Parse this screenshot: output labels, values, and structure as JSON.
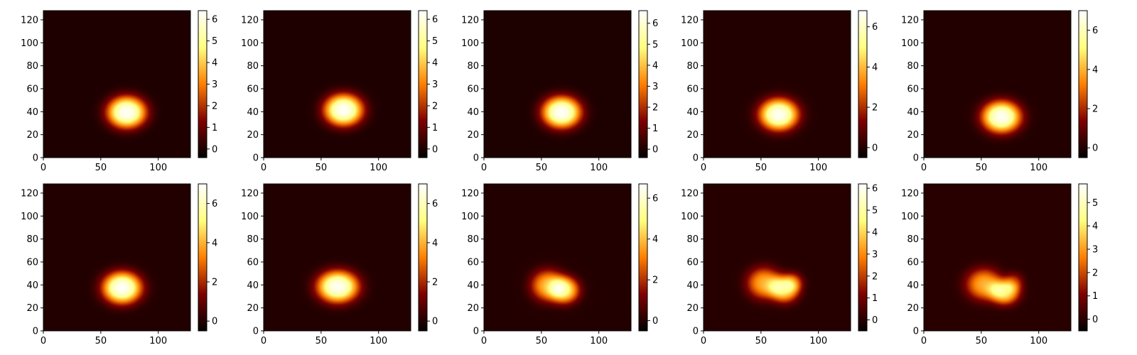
{
  "chart_data": [
    {
      "type": "heatmap",
      "cmap": "afmhot",
      "xlim": [
        0,
        128
      ],
      "ylim": [
        0,
        128
      ],
      "xticks": [
        0,
        50,
        100
      ],
      "yticks": [
        0,
        20,
        40,
        60,
        80,
        100,
        120
      ],
      "blobs": [
        {
          "x": 72,
          "y": 39,
          "sx": 16,
          "sy": 13,
          "amp": 6.3
        }
      ],
      "clim": [
        -0.4,
        6.4
      ],
      "cticks": [
        0,
        1,
        2,
        3,
        4,
        5,
        6
      ]
    },
    {
      "type": "heatmap",
      "cmap": "afmhot",
      "xlim": [
        0,
        128
      ],
      "ylim": [
        0,
        128
      ],
      "xticks": [
        0,
        50,
        100
      ],
      "yticks": [
        0,
        20,
        40,
        60,
        80,
        100,
        120
      ],
      "blobs": [
        {
          "x": 69,
          "y": 41,
          "sx": 16,
          "sy": 13,
          "amp": 6.3
        }
      ],
      "clim": [
        -0.4,
        6.4
      ],
      "cticks": [
        0,
        1,
        2,
        3,
        4,
        5,
        6
      ]
    },
    {
      "type": "heatmap",
      "cmap": "afmhot",
      "xlim": [
        0,
        128
      ],
      "ylim": [
        0,
        128
      ],
      "xticks": [
        0,
        50,
        100
      ],
      "yticks": [
        0,
        20,
        40,
        60,
        80,
        100,
        120
      ],
      "blobs": [
        {
          "x": 67,
          "y": 39,
          "sx": 16,
          "sy": 13,
          "amp": 6.5
        }
      ],
      "clim": [
        -0.4,
        6.6
      ],
      "cticks": [
        0,
        1,
        2,
        3,
        4,
        5,
        6
      ]
    },
    {
      "type": "heatmap",
      "cmap": "afmhot",
      "xlim": [
        0,
        128
      ],
      "ylim": [
        0,
        128
      ],
      "xticks": [
        0,
        50,
        100
      ],
      "yticks": [
        0,
        20,
        40,
        60,
        80,
        100,
        120
      ],
      "blobs": [
        {
          "x": 65,
          "y": 37,
          "sx": 16,
          "sy": 13,
          "amp": 6.6
        }
      ],
      "clim": [
        -0.5,
        6.8
      ],
      "cticks": [
        0,
        2,
        4,
        6
      ]
    },
    {
      "type": "heatmap",
      "cmap": "afmhot",
      "xlim": [
        0,
        128
      ],
      "ylim": [
        0,
        128
      ],
      "xticks": [
        0,
        50,
        100
      ],
      "yticks": [
        0,
        20,
        40,
        60,
        80,
        100,
        120
      ],
      "blobs": [
        {
          "x": 67,
          "y": 35,
          "sx": 16,
          "sy": 13,
          "amp": 6.8
        }
      ],
      "clim": [
        -0.5,
        7.0
      ],
      "cticks": [
        0,
        2,
        4,
        6
      ]
    },
    {
      "type": "heatmap",
      "cmap": "afmhot",
      "xlim": [
        0,
        128
      ],
      "ylim": [
        0,
        128
      ],
      "xticks": [
        0,
        50,
        100
      ],
      "yticks": [
        0,
        20,
        40,
        60,
        80,
        100,
        120
      ],
      "blobs": [
        {
          "x": 68,
          "y": 37,
          "sx": 16,
          "sy": 13,
          "amp": 6.9
        }
      ],
      "clim": [
        -0.5,
        7.0
      ],
      "cticks": [
        0,
        2,
        4,
        6
      ]
    },
    {
      "type": "heatmap",
      "cmap": "afmhot",
      "xlim": [
        0,
        128
      ],
      "ylim": [
        0,
        128
      ],
      "xticks": [
        0,
        50,
        100
      ],
      "yticks": [
        0,
        20,
        40,
        60,
        80,
        100,
        120
      ],
      "blobs": [
        {
          "x": 64,
          "y": 38,
          "sx": 17,
          "sy": 13,
          "amp": 6.8
        }
      ],
      "clim": [
        -0.5,
        7.0
      ],
      "cticks": [
        0,
        2,
        4,
        6
      ]
    },
    {
      "type": "heatmap",
      "cmap": "afmhot",
      "xlim": [
        0,
        128
      ],
      "ylim": [
        0,
        128
      ],
      "xticks": [
        0,
        50,
        100
      ],
      "yticks": [
        0,
        20,
        40,
        60,
        80,
        100,
        120
      ],
      "blobs": [
        {
          "x": 55,
          "y": 39,
          "sx": 14,
          "sy": 13,
          "amp": 3.8
        },
        {
          "x": 70,
          "y": 35,
          "sx": 12,
          "sy": 11,
          "amp": 4.5
        }
      ],
      "clim": [
        -0.5,
        6.7
      ],
      "cticks": [
        0,
        2,
        4,
        6
      ]
    },
    {
      "type": "heatmap",
      "cmap": "afmhot",
      "xlim": [
        0,
        128
      ],
      "ylim": [
        0,
        128
      ],
      "xticks": [
        0,
        50,
        100
      ],
      "yticks": [
        0,
        20,
        40,
        60,
        80,
        100,
        120
      ],
      "blobs": [
        {
          "x": 52,
          "y": 41,
          "sx": 14,
          "sy": 13,
          "amp": 3.4
        },
        {
          "x": 70,
          "y": 36,
          "sx": 12,
          "sy": 11,
          "amp": 4.2
        },
        {
          "x": 78,
          "y": 42,
          "sx": 8,
          "sy": 8,
          "amp": 1.5
        }
      ],
      "clim": [
        -0.5,
        6.2
      ],
      "cticks": [
        0,
        1,
        2,
        3,
        4,
        5,
        6
      ]
    },
    {
      "type": "heatmap",
      "cmap": "afmhot",
      "xlim": [
        0,
        128
      ],
      "ylim": [
        0,
        128
      ],
      "xticks": [
        0,
        50,
        100
      ],
      "yticks": [
        0,
        20,
        40,
        60,
        80,
        100,
        120
      ],
      "blobs": [
        {
          "x": 52,
          "y": 40,
          "sx": 15,
          "sy": 13,
          "amp": 3.2
        },
        {
          "x": 70,
          "y": 33,
          "sx": 12,
          "sy": 10,
          "amp": 3.8
        },
        {
          "x": 78,
          "y": 42,
          "sx": 8,
          "sy": 8,
          "amp": 1.4
        }
      ],
      "clim": [
        -0.5,
        5.8
      ],
      "cticks": [
        0,
        1,
        2,
        3,
        4,
        5
      ]
    }
  ]
}
